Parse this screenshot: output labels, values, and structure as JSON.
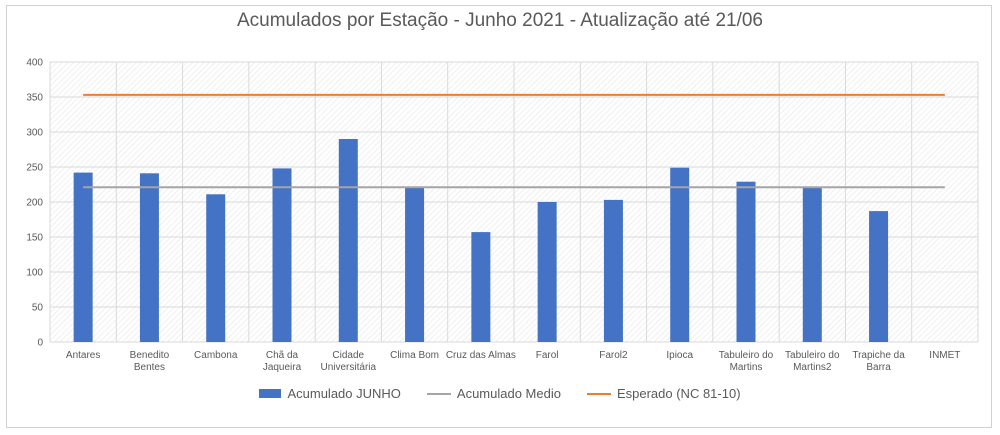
{
  "chart_data": {
    "type": "bar",
    "title": "Acumulados por Estação - Junho 2021 - Atualização até 21/06",
    "categories": [
      [
        "Antares"
      ],
      [
        "Benedito",
        "Bentes"
      ],
      [
        "Cambona"
      ],
      [
        "Chã da",
        "Jaqueira"
      ],
      [
        "Cidade",
        "Universitária"
      ],
      [
        "Clima Bom"
      ],
      [
        "Cruz das Almas"
      ],
      [
        "Farol"
      ],
      [
        "Farol2"
      ],
      [
        "Ipioca"
      ],
      [
        "Tabuleiro do",
        "Martins"
      ],
      [
        "Tabuleiro do",
        "Martins2"
      ],
      [
        "Trapiche da",
        "Barra"
      ],
      [
        "INMET"
      ]
    ],
    "series": [
      {
        "name": "Acumulado JUNHO",
        "kind": "bar",
        "color": "#4472C4",
        "values": [
          242,
          241,
          211,
          248,
          290,
          220,
          157,
          200,
          203,
          249,
          229,
          220,
          187,
          null
        ]
      },
      {
        "name": "Acumulado Medio",
        "kind": "line",
        "color": "#A5A5A5",
        "values": [
          221,
          221,
          221,
          221,
          221,
          221,
          221,
          221,
          221,
          221,
          221,
          221,
          221,
          221
        ]
      },
      {
        "name": "Esperado (NC 81-10)",
        "kind": "line",
        "color": "#ED7D31",
        "values": [
          353,
          353,
          353,
          353,
          353,
          353,
          353,
          353,
          353,
          353,
          353,
          353,
          353,
          353
        ]
      }
    ],
    "ylim": [
      0,
      400
    ],
    "yticks": [
      0,
      50,
      100,
      150,
      200,
      250,
      300,
      350,
      400
    ],
    "xlabel": "",
    "ylabel": "",
    "grid": true,
    "legend_position": "bottom"
  }
}
